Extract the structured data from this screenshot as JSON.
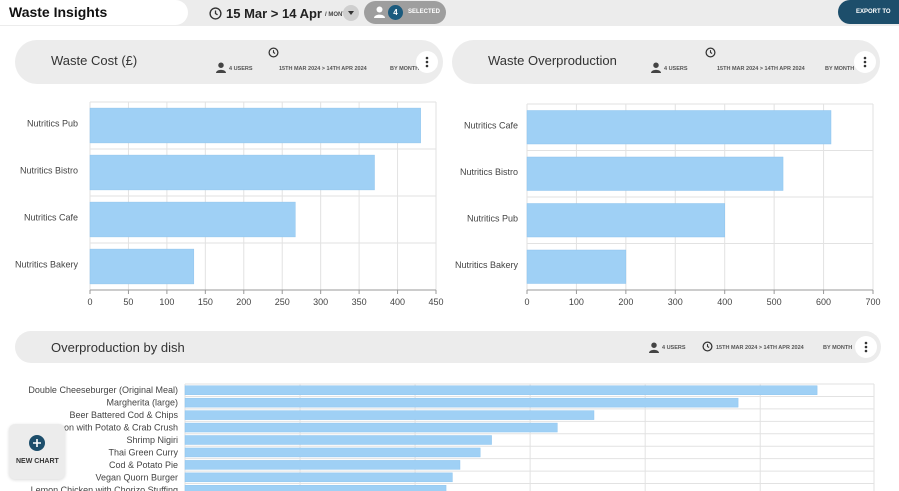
{
  "app": {
    "title": "Waste Insights",
    "date_range": "15 Mar > 14 Apr",
    "date_period": "/ MONTH",
    "selected_count": "4",
    "selected_label": "SELECTED",
    "export_label": "EXPORT TO"
  },
  "colors": {
    "bar": "#9fd0f5",
    "bar_stroke": "#8ec4ee",
    "accent": "#1d4e6b",
    "header_bg": "#ececec",
    "grid": "#e2e2e2"
  },
  "icons": {
    "clock": "clock-icon",
    "user": "user-icon",
    "menu": "kebab-menu-icon",
    "dropdown": "chevron-down-icon",
    "plus": "plus-icon"
  },
  "panels": {
    "waste_cost": {
      "title": "Waste Cost (£)",
      "users": "4 USERS",
      "date_range": "15TH MAR 2024 > 14TH APR 2024",
      "period": "BY MONTH"
    },
    "waste_overproduction": {
      "title": "Waste Overproduction",
      "users": "4 USERS",
      "date_range": "15TH MAR 2024 > 14TH APR 2024",
      "period": "BY MONTH"
    },
    "overproduction_by_dish": {
      "title": "Overproduction by dish",
      "users": "4 USERS",
      "date_range": "15TH MAR 2024 > 14TH APR 2024",
      "period": "BY MONTH"
    }
  },
  "new_chart_label": "NEW CHART",
  "chart_data": [
    {
      "type": "bar",
      "orientation": "horizontal",
      "title": "Waste Cost (£)",
      "categories": [
        "Nutritics Pub",
        "Nutritics Bistro",
        "Nutritics Cafe",
        "Nutritics Bakery"
      ],
      "values": [
        430,
        370,
        267,
        135
      ],
      "xlim": [
        0,
        450
      ],
      "ticks": [
        0,
        50,
        100,
        150,
        200,
        250,
        300,
        350,
        400,
        450
      ],
      "grid": true
    },
    {
      "type": "bar",
      "orientation": "horizontal",
      "title": "Waste Overproduction",
      "categories": [
        "Nutritics Cafe",
        "Nutritics Bistro",
        "Nutritics Pub",
        "Nutritics Bakery"
      ],
      "values": [
        615,
        518,
        400,
        200
      ],
      "xlim": [
        0,
        700
      ],
      "ticks": [
        0,
        100,
        200,
        300,
        400,
        500,
        600,
        700
      ],
      "grid": true
    },
    {
      "type": "bar",
      "orientation": "horizontal",
      "title": "Overproduction by dish",
      "categories": [
        "Double Cheeseburger (Original Meal)",
        "Margherita (large)",
        "Beer Battered Cod & Chips",
        "Salmon with Potato & Crab Crush",
        "Shrimp Nigiri",
        "Thai Green Curry",
        "Cod & Potato Pie",
        "Vegan Quorn Burger",
        "Lemon Chicken with Chorizo Stuffing"
      ],
      "values": [
        100,
        87.5,
        64.7,
        58.9,
        48.5,
        46.7,
        43.5,
        42.3,
        41.3
      ],
      "xlim": [
        0,
        109
      ],
      "grid": true
    }
  ]
}
